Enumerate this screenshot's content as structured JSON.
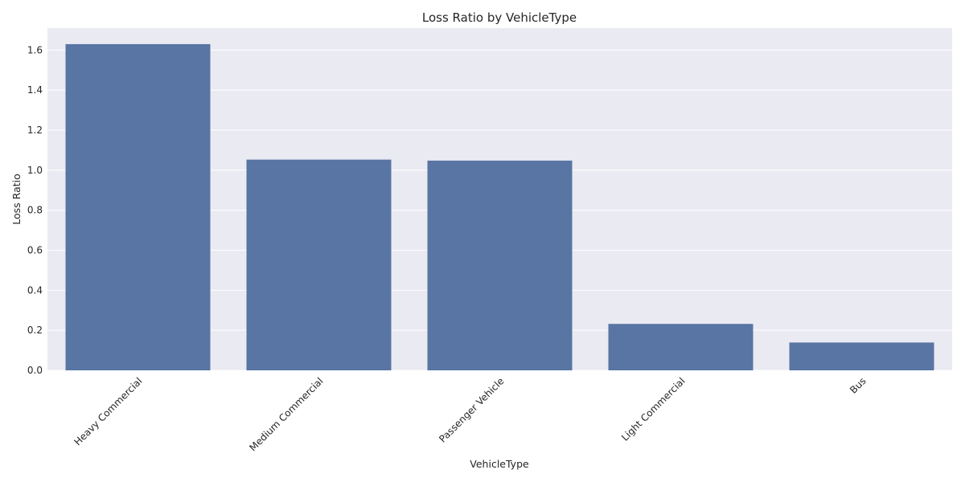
{
  "chart_data": {
    "type": "bar",
    "title": "Loss Ratio by VehicleType",
    "xlabel": "VehicleType",
    "ylabel": "Loss Ratio",
    "categories": [
      "Heavy Commercial",
      "Medium Commercial",
      "Passenger Vehicle",
      "Light Commercial",
      "Bus"
    ],
    "values": [
      1.63,
      1.053,
      1.048,
      0.232,
      0.139
    ],
    "ylim": [
      0,
      1.71
    ],
    "yticks": [
      "0.0",
      "0.2",
      "0.4",
      "0.6",
      "0.8",
      "1.0",
      "1.2",
      "1.4",
      "1.6"
    ],
    "grid": true,
    "bar_color": "#5975a4",
    "plot_background": "#eaeaf2",
    "grid_color": "#ffffff"
  }
}
